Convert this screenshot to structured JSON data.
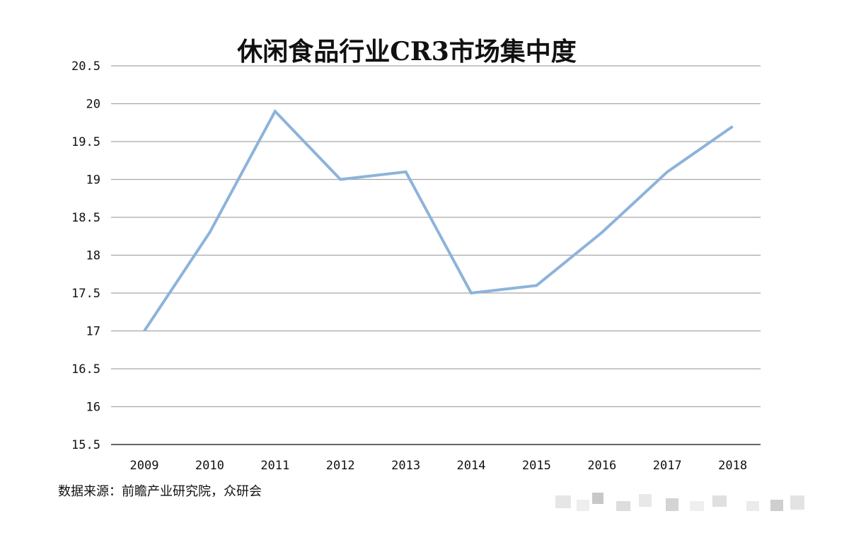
{
  "chart_data": {
    "type": "line",
    "title": "休闲食品行业CR3市场集中度",
    "xlabel": "",
    "ylabel": "",
    "categories": [
      "2009",
      "2010",
      "2011",
      "2012",
      "2013",
      "2014",
      "2015",
      "2016",
      "2017",
      "2018"
    ],
    "series": [
      {
        "values": [
          17.0,
          18.3,
          19.9,
          19.0,
          19.1,
          17.5,
          17.6,
          18.3,
          19.1,
          19.7
        ]
      }
    ],
    "ylim": [
      15.5,
      20.5
    ],
    "yticks": [
      "20.5",
      "20",
      "19.5",
      "19",
      "18.5",
      "18",
      "17.5",
      "17",
      "16.5",
      "16",
      "15.5"
    ],
    "grid": true,
    "legend": "none",
    "line_color": "#8db3da",
    "grid_color": "#a6a6a6"
  },
  "source": "数据来源：前瞻产业研究院，众研会"
}
